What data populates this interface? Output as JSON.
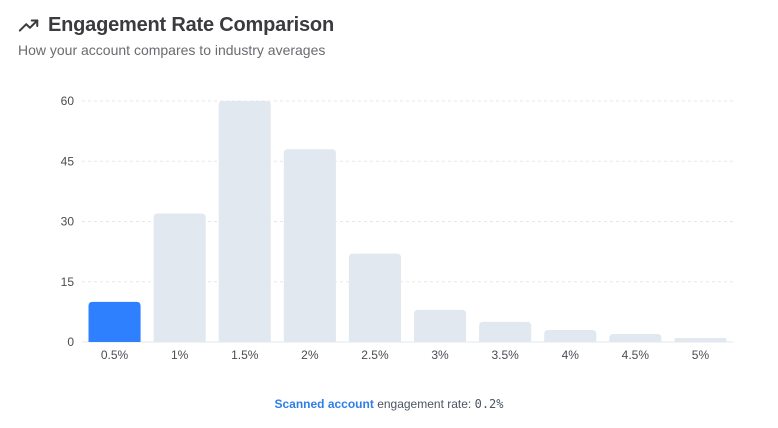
{
  "header": {
    "title": "Engagement Rate Comparison",
    "subtitle": "How your account compares to industry averages",
    "icon": "trending-up-icon"
  },
  "colors": {
    "highlight": "#2f80ff",
    "bar": "#e2e8f0",
    "grid": "#e5e7eb"
  },
  "chart_data": {
    "type": "bar",
    "title": "Engagement Rate Comparison",
    "xlabel": "",
    "ylabel": "",
    "categories": [
      "0.5%",
      "1%",
      "1.5%",
      "2%",
      "2.5%",
      "3%",
      "3.5%",
      "4%",
      "4.5%",
      "5%"
    ],
    "values": [
      10,
      32,
      60,
      48,
      22,
      8,
      5,
      3,
      2,
      1
    ],
    "highlight_category": "0.5%",
    "ylim": [
      0,
      60
    ],
    "yticks": [
      0,
      15,
      30,
      45,
      60
    ],
    "grid": true
  },
  "footer": {
    "highlight_label": "Scanned account",
    "text": "engagement rate:",
    "value": "0.2%"
  }
}
